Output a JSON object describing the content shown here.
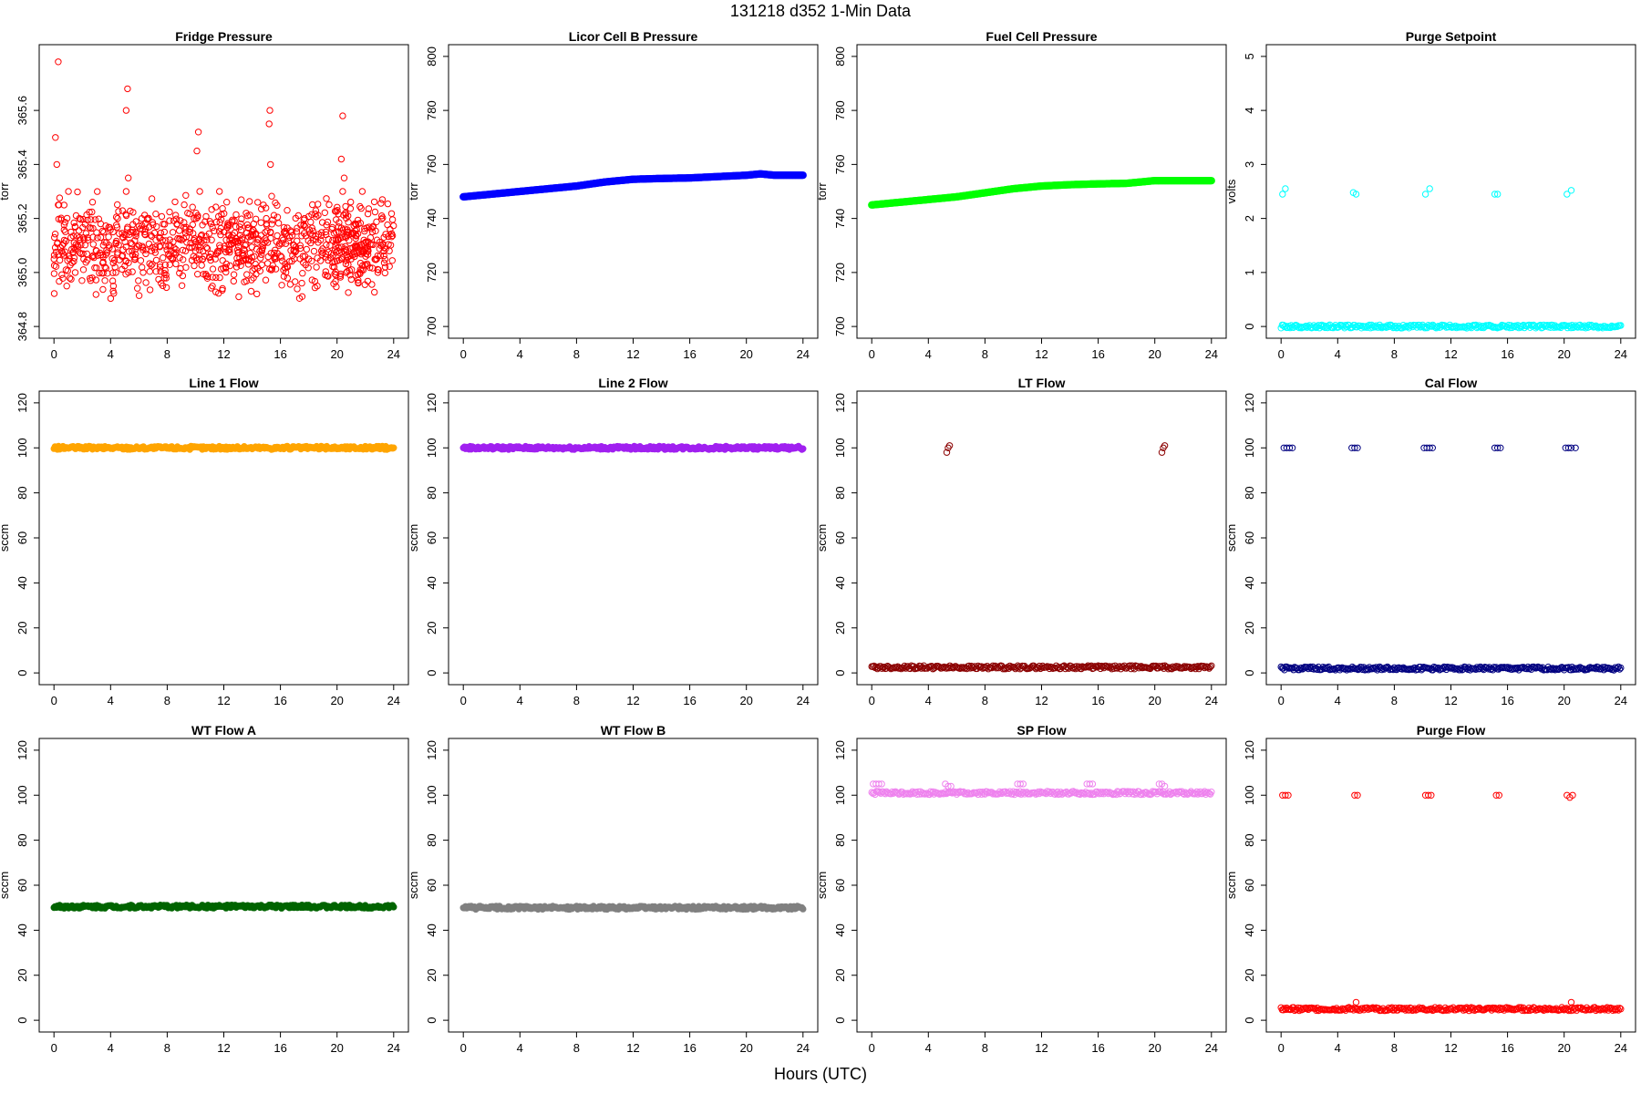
{
  "title": "131218    d352    1-Min Data",
  "xlabel": "Hours (UTC)",
  "chart_data": [
    {
      "type": "scatter",
      "title": "Fridge Pressure",
      "ylabel": "torr",
      "xlim": [
        0,
        24
      ],
      "ylim": [
        364.8,
        365.8
      ],
      "xticks": [
        0,
        4,
        8,
        12,
        16,
        20,
        24
      ],
      "yticks": [
        364.8,
        365.0,
        365.2,
        365.4,
        365.6
      ],
      "ytick_labels": [
        "364.8",
        "365.0",
        "365.2",
        "365.4",
        "365.6"
      ],
      "color": "#ff0000",
      "marker": "open",
      "series": [
        {
          "x": [
            0.0,
            0.3,
            0.6,
            0.9,
            1.2,
            1.5,
            1.8,
            2.1,
            2.4,
            2.7,
            3.0,
            3.3,
            3.6,
            3.9,
            4.2,
            4.5,
            4.8,
            5.1,
            5.4,
            5.7,
            6.0,
            6.3,
            6.6,
            6.9,
            7.2,
            7.5,
            7.8,
            8.1,
            8.4,
            8.7,
            9.0,
            9.3,
            9.6,
            9.9,
            10.2,
            10.5,
            10.8,
            11.1,
            11.4,
            11.7,
            12.0,
            12.3,
            12.6,
            12.9,
            13.2,
            13.5,
            13.8,
            14.1,
            14.4,
            14.7,
            15.0,
            15.3,
            15.6,
            15.9,
            16.2,
            16.5,
            16.8,
            17.1,
            17.4,
            17.7,
            18.0,
            18.3,
            18.6,
            18.9,
            19.2,
            19.5,
            19.8,
            20.1,
            20.4,
            20.7,
            21.0,
            21.3,
            21.6,
            21.9,
            22.2,
            22.5,
            22.8,
            23.1,
            23.4,
            23.7,
            0.1,
            0.2,
            0.3,
            0.35,
            5.1,
            5.2,
            5.25,
            10.1,
            10.2,
            10.3,
            15.2,
            15.25,
            15.3,
            20.3,
            20.4,
            20.5
          ],
          "y": [
            365.05,
            365.25,
            365.1,
            364.95,
            365.15,
            365.0,
            365.2,
            365.05,
            365.12,
            364.98,
            365.08,
            365.18,
            365.02,
            365.1,
            364.95,
            365.2,
            365.06,
            365.3,
            365.15,
            365.05,
            365.1,
            365.0,
            365.2,
            365.08,
            365.12,
            365.02,
            365.15,
            365.1,
            365.05,
            365.18,
            365.12,
            365.08,
            365.15,
            365.2,
            365.1,
            365.05,
            365.12,
            365.18,
            365.05,
            365.1,
            365.15,
            365.08,
            365.12,
            365.02,
            365.18,
            365.1,
            365.05,
            364.98,
            365.12,
            365.08,
            365.2,
            365.15,
            365.05,
            365.1,
            365.12,
            365.02,
            365.15,
            365.08,
            365.1,
            365.2,
            365.05,
            365.12,
            364.95,
            365.08,
            365.15,
            365.1,
            365.02,
            365.12,
            365.3,
            365.15,
            365.05,
            365.1,
            365.0,
            365.12,
            365.08,
            365.15,
            365.05,
            365.1,
            365.02,
            365.08,
            365.5,
            365.4,
            365.78,
            365.25,
            365.6,
            365.68,
            365.35,
            365.45,
            365.52,
            365.3,
            365.55,
            365.6,
            365.4,
            365.42,
            365.58,
            365.35
          ]
        }
      ]
    },
    {
      "type": "scatter",
      "title": "Licor Cell B Pressure",
      "ylabel": "torr",
      "xlim": [
        0,
        24
      ],
      "ylim": [
        700,
        800
      ],
      "xticks": [
        0,
        4,
        8,
        12,
        16,
        20,
        24
      ],
      "yticks": [
        700,
        720,
        740,
        760,
        780,
        800
      ],
      "ytick_labels": [
        "700",
        "720",
        "740",
        "760",
        "780",
        "800"
      ],
      "color": "#0000ff",
      "marker": "filled",
      "series": [
        {
          "x": [
            0,
            2,
            4,
            6,
            8,
            10,
            12,
            14,
            16,
            18,
            20,
            21,
            22,
            24
          ],
          "y": [
            748,
            749,
            750,
            751,
            752,
            753.5,
            754.5,
            754.8,
            755,
            755.5,
            756,
            756.5,
            756,
            756
          ]
        }
      ]
    },
    {
      "type": "scatter",
      "title": "Fuel Cell Pressure",
      "ylabel": "torr",
      "xlim": [
        0,
        24
      ],
      "ylim": [
        700,
        800
      ],
      "xticks": [
        0,
        4,
        8,
        12,
        16,
        20,
        24
      ],
      "yticks": [
        700,
        720,
        740,
        760,
        780,
        800
      ],
      "ytick_labels": [
        "700",
        "720",
        "740",
        "760",
        "780",
        "800"
      ],
      "color": "#00ff00",
      "marker": "filled",
      "series": [
        {
          "x": [
            0,
            2,
            4,
            6,
            8,
            10,
            12,
            14,
            16,
            18,
            20,
            22,
            24
          ],
          "y": [
            745,
            746,
            747,
            748,
            749.5,
            751,
            752,
            752.5,
            752.8,
            753,
            754,
            754,
            754
          ]
        }
      ]
    },
    {
      "type": "scatter",
      "title": "Purge Setpoint",
      "ylabel": "volts",
      "xlim": [
        0,
        24
      ],
      "ylim": [
        0,
        5
      ],
      "xticks": [
        0,
        4,
        8,
        12,
        16,
        20,
        24
      ],
      "yticks": [
        0,
        1,
        2,
        3,
        4,
        5
      ],
      "ytick_labels": [
        "0",
        "1",
        "2",
        "3",
        "4",
        "5"
      ],
      "color": "#00ffff",
      "marker": "open",
      "series": [
        {
          "x": [
            0,
            24
          ],
          "y": [
            0,
            0
          ],
          "kind": "band"
        },
        {
          "x": [
            0.1,
            0.3,
            5.1,
            5.3,
            10.2,
            10.5,
            15.1,
            15.3,
            20.2,
            20.5
          ],
          "y": [
            2.45,
            2.55,
            2.48,
            2.45,
            2.45,
            2.55,
            2.45,
            2.45,
            2.45,
            2.52
          ]
        }
      ]
    },
    {
      "type": "scatter",
      "title": "Line 1 Flow",
      "ylabel": "sccm",
      "xlim": [
        0,
        24
      ],
      "ylim": [
        0,
        120
      ],
      "xticks": [
        0,
        4,
        8,
        12,
        16,
        20,
        24
      ],
      "yticks": [
        0,
        20,
        40,
        60,
        80,
        100,
        120
      ],
      "ytick_labels": [
        "0",
        "20",
        "40",
        "60",
        "80",
        "100",
        "120"
      ],
      "color": "#ffa500",
      "marker": "filled",
      "series": [
        {
          "x": [
            0,
            24
          ],
          "y": [
            100,
            100
          ],
          "kind": "band"
        }
      ]
    },
    {
      "type": "scatter",
      "title": "Line 2 Flow",
      "ylabel": "sccm",
      "xlim": [
        0,
        24
      ],
      "ylim": [
        0,
        120
      ],
      "xticks": [
        0,
        4,
        8,
        12,
        16,
        20,
        24
      ],
      "yticks": [
        0,
        20,
        40,
        60,
        80,
        100,
        120
      ],
      "ytick_labels": [
        "0",
        "20",
        "40",
        "60",
        "80",
        "100",
        "120"
      ],
      "color": "#a020f0",
      "marker": "filled",
      "series": [
        {
          "x": [
            0,
            24
          ],
          "y": [
            100,
            100
          ],
          "kind": "band"
        }
      ]
    },
    {
      "type": "scatter",
      "title": "LT Flow",
      "ylabel": "sccm",
      "xlim": [
        0,
        24
      ],
      "ylim": [
        0,
        120
      ],
      "xticks": [
        0,
        4,
        8,
        12,
        16,
        20,
        24
      ],
      "yticks": [
        0,
        20,
        40,
        60,
        80,
        100,
        120
      ],
      "ytick_labels": [
        "0",
        "20",
        "40",
        "60",
        "80",
        "100",
        "120"
      ],
      "color": "#8b0000",
      "marker": "open",
      "series": [
        {
          "x": [
            0,
            24
          ],
          "y": [
            2.5,
            2.5
          ],
          "kind": "band"
        },
        {
          "x": [
            5.3,
            5.4,
            5.5,
            20.5,
            20.6,
            20.7
          ],
          "y": [
            98,
            100,
            101,
            98,
            100,
            101
          ]
        }
      ]
    },
    {
      "type": "scatter",
      "title": "Cal Flow",
      "ylabel": "sccm",
      "xlim": [
        0,
        24
      ],
      "ylim": [
        0,
        120
      ],
      "xticks": [
        0,
        4,
        8,
        12,
        16,
        20,
        24
      ],
      "yticks": [
        0,
        20,
        40,
        60,
        80,
        100,
        120
      ],
      "ytick_labels": [
        "0",
        "20",
        "40",
        "60",
        "80",
        "100",
        "120"
      ],
      "color": "#000080",
      "marker": "open",
      "series": [
        {
          "x": [
            0,
            24
          ],
          "y": [
            2,
            2
          ],
          "kind": "band"
        },
        {
          "x": [
            0.2,
            0.4,
            0.6,
            0.8,
            5.0,
            5.2,
            5.4,
            10.1,
            10.3,
            10.5,
            10.7,
            15.1,
            15.3,
            15.5,
            20.1,
            20.3,
            20.5,
            20.8
          ],
          "y": [
            100,
            100,
            100,
            100,
            100,
            100,
            100,
            100,
            100,
            100,
            100,
            100,
            100,
            100,
            100,
            100,
            100,
            100
          ]
        }
      ]
    },
    {
      "type": "scatter",
      "title": "WT Flow A",
      "ylabel": "sccm",
      "xlim": [
        0,
        24
      ],
      "ylim": [
        0,
        120
      ],
      "xticks": [
        0,
        4,
        8,
        12,
        16,
        20,
        24
      ],
      "yticks": [
        0,
        20,
        40,
        60,
        80,
        100,
        120
      ],
      "ytick_labels": [
        "0",
        "20",
        "40",
        "60",
        "80",
        "100",
        "120"
      ],
      "color": "#006400",
      "marker": "filled",
      "series": [
        {
          "x": [
            0,
            24
          ],
          "y": [
            50.5,
            50.5
          ],
          "kind": "band"
        }
      ]
    },
    {
      "type": "scatter",
      "title": "WT Flow B",
      "ylabel": "sccm",
      "xlim": [
        0,
        24
      ],
      "ylim": [
        0,
        120
      ],
      "xticks": [
        0,
        4,
        8,
        12,
        16,
        20,
        24
      ],
      "yticks": [
        0,
        20,
        40,
        60,
        80,
        100,
        120
      ],
      "ytick_labels": [
        "0",
        "20",
        "40",
        "60",
        "80",
        "100",
        "120"
      ],
      "color": "#808080",
      "marker": "filled",
      "series": [
        {
          "x": [
            0,
            24
          ],
          "y": [
            50,
            50
          ],
          "kind": "band"
        }
      ]
    },
    {
      "type": "scatter",
      "title": "SP Flow",
      "ylabel": "sccm",
      "xlim": [
        0,
        24
      ],
      "ylim": [
        0,
        120
      ],
      "xticks": [
        0,
        4,
        8,
        12,
        16,
        20,
        24
      ],
      "yticks": [
        0,
        20,
        40,
        60,
        80,
        100,
        120
      ],
      "ytick_labels": [
        "0",
        "20",
        "40",
        "60",
        "80",
        "100",
        "120"
      ],
      "color": "#ee82ee",
      "marker": "open",
      "series": [
        {
          "x": [
            0,
            24
          ],
          "y": [
            101,
            101
          ],
          "kind": "band"
        },
        {
          "x": [
            0.1,
            0.3,
            0.5,
            0.7,
            5.2,
            5.4,
            5.6,
            10.3,
            10.5,
            10.7,
            15.2,
            15.4,
            15.6,
            20.3,
            20.5,
            20.7
          ],
          "y": [
            105,
            105,
            105,
            105,
            105,
            104,
            104,
            105,
            105,
            105,
            105,
            105,
            105,
            105,
            105,
            104
          ]
        }
      ]
    },
    {
      "type": "scatter",
      "title": "Purge Flow",
      "ylabel": "sccm",
      "xlim": [
        0,
        24
      ],
      "ylim": [
        0,
        120
      ],
      "xticks": [
        0,
        4,
        8,
        12,
        16,
        20,
        24
      ],
      "yticks": [
        0,
        20,
        40,
        60,
        80,
        100,
        120
      ],
      "ytick_labels": [
        "0",
        "20",
        "40",
        "60",
        "80",
        "100",
        "120"
      ],
      "color": "#ff0000",
      "marker": "open",
      "series": [
        {
          "x": [
            0,
            24
          ],
          "y": [
            5,
            5
          ],
          "kind": "band"
        },
        {
          "x": [
            0.1,
            0.3,
            0.5,
            5.2,
            5.4,
            10.2,
            10.4,
            10.6,
            15.2,
            15.4,
            20.2,
            20.4,
            20.6,
            5.3,
            20.5
          ],
          "y": [
            100,
            100,
            100,
            100,
            100,
            100,
            100,
            100,
            100,
            100,
            100,
            99,
            100,
            8,
            8
          ]
        }
      ]
    }
  ]
}
